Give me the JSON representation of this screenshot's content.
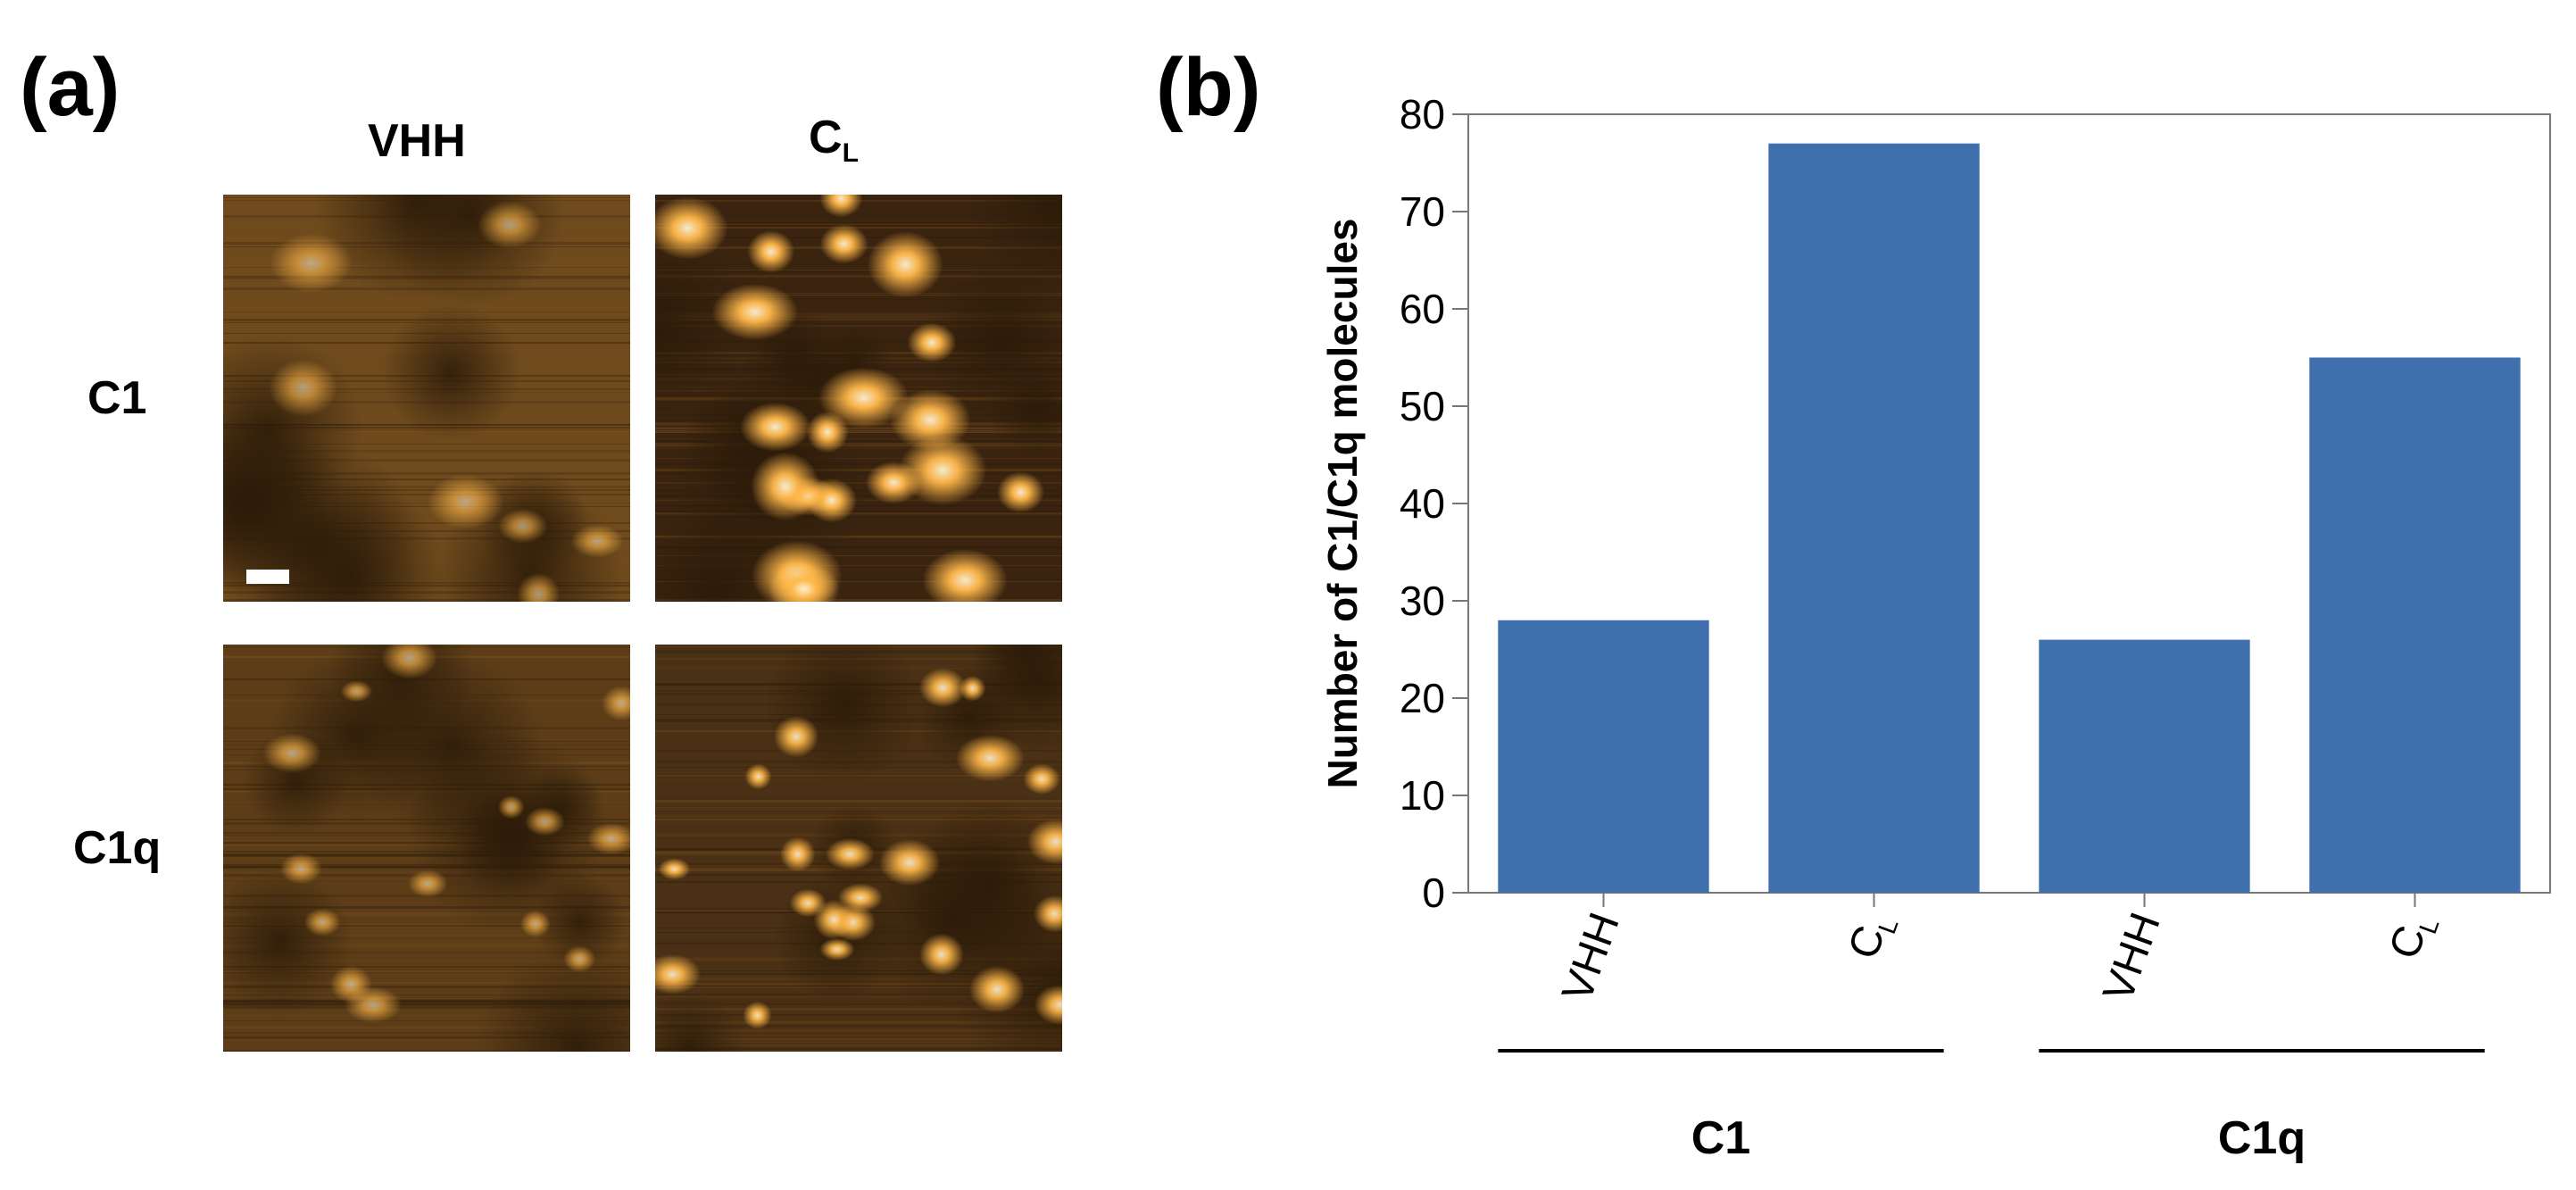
{
  "figure": {
    "panel_a_label": "(a)",
    "panel_b_label": "(b)"
  },
  "panel_a": {
    "columns": [
      {
        "text": "VHH",
        "sub": ""
      },
      {
        "text": "C",
        "sub": "L"
      }
    ],
    "rows": [
      "C1",
      "C1q"
    ],
    "colors": {
      "dark": "#2a1a08",
      "mid": "#7a4f1c",
      "bright": "#ffb84a",
      "highlight": "#fff3d6"
    }
  },
  "chart_data": {
    "type": "bar",
    "title": "",
    "xlabel": "",
    "ylabel": "Number of C1/C1q molecules",
    "ylim": [
      0,
      80
    ],
    "yticks": [
      0,
      10,
      20,
      30,
      40,
      50,
      60,
      70,
      80
    ],
    "categories": [
      {
        "text": "VHH",
        "sub": ""
      },
      {
        "text": "C",
        "sub": "L"
      },
      {
        "text": "VHH",
        "sub": ""
      },
      {
        "text": "C",
        "sub": "L"
      }
    ],
    "values": [
      28,
      77,
      26,
      55
    ],
    "groups": [
      {
        "label": "C1",
        "members": [
          0,
          1
        ]
      },
      {
        "label": "C1q",
        "members": [
          2,
          3
        ]
      }
    ],
    "bar_color": "#3f6fad",
    "grid": false,
    "legend": "none"
  }
}
